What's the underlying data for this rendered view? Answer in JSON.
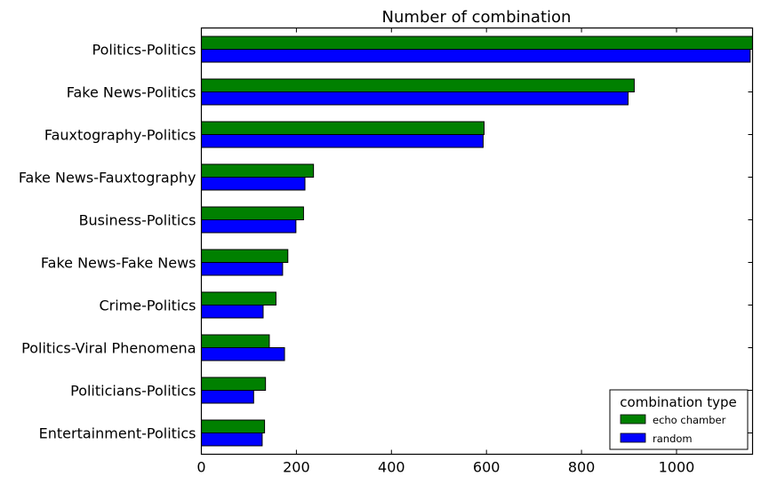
{
  "chart_data": {
    "type": "bar",
    "orientation": "horizontal",
    "title": "Number of combination",
    "xlabel": "",
    "ylabel": "",
    "xlim": [
      0,
      1160
    ],
    "x_ticks": [
      0,
      200,
      400,
      600,
      800,
      1000
    ],
    "grid": false,
    "categories": [
      "Politics-Politics",
      "Fake News-Politics",
      "Fauxtography-Politics",
      "Fake News-Fauxtography",
      "Business-Politics",
      "Fake News-Fake News",
      "Crime-Politics",
      "Politics-Viral Phenomena",
      "Politicians-Politics",
      "Entertainment-Politics"
    ],
    "series": [
      {
        "name": "echo chamber",
        "color": "#008000",
        "values": [
          1160,
          911,
          595,
          236,
          215,
          182,
          157,
          143,
          135,
          133
        ]
      },
      {
        "name": "random",
        "color": "#0000ff",
        "values": [
          1155,
          898,
          593,
          218,
          199,
          171,
          130,
          175,
          110,
          128
        ]
      }
    ],
    "legend": {
      "title": "combination type",
      "position": "bottom-right"
    }
  }
}
